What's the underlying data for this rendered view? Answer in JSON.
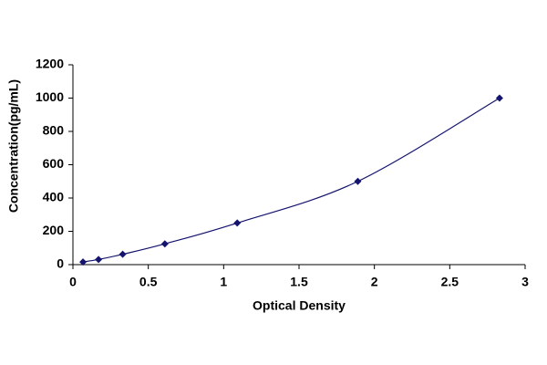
{
  "chart_data": {
    "type": "scatter",
    "x_label": "Optical Density",
    "y_label": "Concentration(pg/mL)",
    "x": [
      0.067,
      0.17,
      0.33,
      0.61,
      1.09,
      1.89,
      2.83
    ],
    "values": [
      16,
      31,
      62,
      125,
      250,
      500,
      1000
    ],
    "color": "#14146e",
    "xlim": [
      0,
      3
    ],
    "xticks": [
      0,
      0.5,
      1,
      1.5,
      2,
      2.5,
      3
    ],
    "ylim": [
      0,
      1200
    ],
    "yticks": [
      0,
      200,
      400,
      600,
      800,
      1000,
      1200
    ],
    "grid": false,
    "smooth_line": true
  }
}
